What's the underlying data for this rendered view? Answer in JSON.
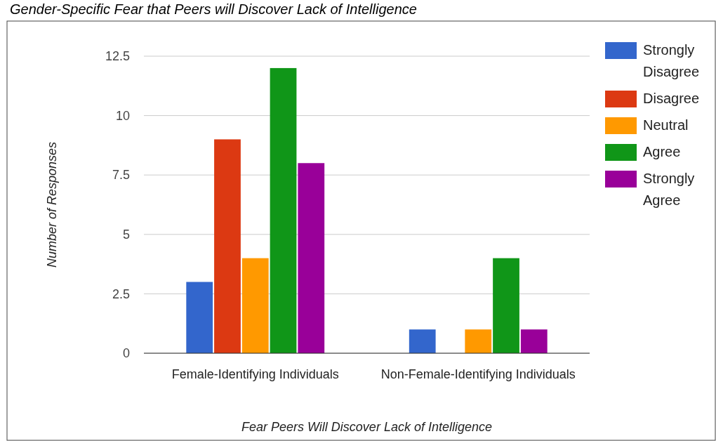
{
  "chart_data": {
    "type": "bar",
    "title": "Gender-Specific Fear that Peers will Discover Lack of Intelligence",
    "xlabel": "Fear Peers Will Discover Lack of Intelligence",
    "ylabel": "Number of Responses",
    "categories": [
      "Female-Identifying Individuals",
      "Non-Female-Identifying Individuals"
    ],
    "series": [
      {
        "name": "Strongly Disagree",
        "color": "#3366cc",
        "values": [
          3,
          1
        ]
      },
      {
        "name": "Disagree",
        "color": "#dc3912",
        "values": [
          9,
          0
        ]
      },
      {
        "name": "Neutral",
        "color": "#ff9900",
        "values": [
          4,
          1
        ]
      },
      {
        "name": "Agree",
        "color": "#109618",
        "values": [
          12,
          4
        ]
      },
      {
        "name": "Strongly Agree",
        "color": "#990099",
        "values": [
          8,
          1
        ]
      }
    ],
    "ylim": [
      0,
      12.5
    ],
    "yticks": [
      0,
      2.5,
      5,
      7.5,
      10,
      12.5
    ],
    "grid": "y",
    "legend": "right"
  }
}
